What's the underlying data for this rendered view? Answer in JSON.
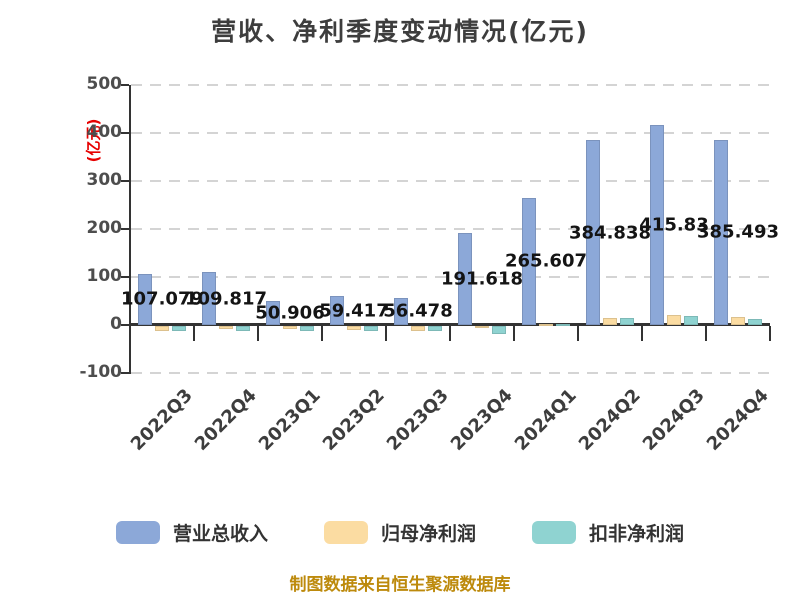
{
  "title": "营收、净利季度变动情况(亿元)",
  "footer": "制图数据来自恒生聚源数据库",
  "chart_data": {
    "type": "bar",
    "title": "营收、净利季度变动情况(亿元)",
    "ylabel": "(亿元)",
    "xlabel": "",
    "categories": [
      "2022Q3",
      "2022Q4",
      "2023Q1",
      "2023Q2",
      "2023Q3",
      "2023Q4",
      "2024Q1",
      "2024Q2",
      "2024Q3",
      "2024Q4"
    ],
    "yticks": [
      500,
      400,
      300,
      200,
      100,
      0,
      -100
    ],
    "ylim": [
      -100,
      500
    ],
    "grid": "dashed-horizontal",
    "legend_position": "bottom",
    "series": [
      {
        "name": "营业总收入",
        "color": "#8CA8D8",
        "values": [
          107.079,
          109.817,
          50.906,
          59.417,
          56.478,
          191.618,
          265.607,
          384.838,
          415.83,
          385.493
        ],
        "labels": [
          "107.079",
          "109.817",
          "50.906",
          "59.417",
          "56.478",
          "191.618",
          "265.607",
          "384.838",
          "415.83",
          "385.493"
        ]
      },
      {
        "name": "归母净利润",
        "color": "#FBDCA2",
        "values": [
          -9.5,
          -6.5,
          -6.5,
          -7.5,
          -9.5,
          -1.5,
          2.2,
          15,
          20,
          16
        ]
      },
      {
        "name": "扣非净利润",
        "color": "#8FD3D1",
        "values": [
          -10,
          -10.5,
          -9.5,
          -10,
          -11,
          -16,
          1.2,
          14,
          19,
          13.5
        ]
      }
    ]
  },
  "axis_colors": {
    "title_color": "#3d3d3d",
    "ylabel_color": "#e60000",
    "tick_color": "#4d4d4d",
    "value_label_color": "#141414",
    "footer_color": "#bd8a0c"
  }
}
